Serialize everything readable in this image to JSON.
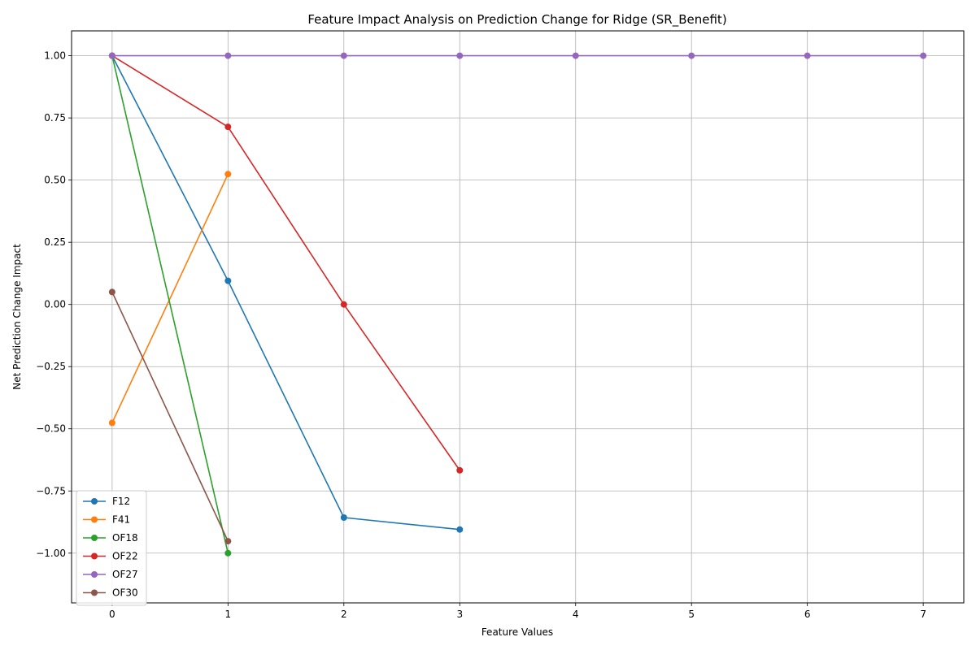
{
  "chart_data": {
    "type": "line",
    "title": "Feature Impact Analysis on Prediction Change for Ridge (SR_Benefit)",
    "xlabel": "Feature Values",
    "ylabel": "Net Prediction Change Impact",
    "xlim": [
      -0.35,
      7.35
    ],
    "ylim": [
      -1.2,
      1.1
    ],
    "xticks": [
      0,
      1,
      2,
      3,
      4,
      5,
      6,
      7
    ],
    "xtick_labels": [
      "0",
      "1",
      "2",
      "3",
      "4",
      "5",
      "6",
      "7"
    ],
    "yticks": [
      -1.0,
      -0.75,
      -0.5,
      -0.25,
      0.0,
      0.25,
      0.5,
      0.75,
      1.0
    ],
    "ytick_labels": [
      "−1.00",
      "−0.75",
      "−0.50",
      "−0.25",
      "0.00",
      "0.25",
      "0.50",
      "0.75",
      "1.00"
    ],
    "grid": true,
    "legend_position": "lower-left",
    "series": [
      {
        "name": "F12",
        "color": "#1f77b4",
        "x": [
          0,
          1,
          2,
          3
        ],
        "y": [
          1.0,
          0.095,
          -0.857,
          -0.905
        ]
      },
      {
        "name": "F41",
        "color": "#ff7f0e",
        "x": [
          0,
          1
        ],
        "y": [
          -0.476,
          0.524
        ]
      },
      {
        "name": "OF18",
        "color": "#2ca02c",
        "x": [
          0,
          1
        ],
        "y": [
          1.0,
          -1.0
        ]
      },
      {
        "name": "OF22",
        "color": "#d62728",
        "x": [
          0,
          1,
          2,
          3
        ],
        "y": [
          1.0,
          0.714,
          0.0,
          -0.667
        ]
      },
      {
        "name": "OF27",
        "color": "#9467bd",
        "x": [
          0,
          1,
          2,
          3,
          4,
          5,
          6,
          7
        ],
        "y": [
          1.0,
          1.0,
          1.0,
          1.0,
          1.0,
          1.0,
          1.0,
          1.0
        ]
      },
      {
        "name": "OF30",
        "color": "#8c564b",
        "x": [
          0,
          1
        ],
        "y": [
          0.05,
          -0.952
        ]
      }
    ]
  }
}
